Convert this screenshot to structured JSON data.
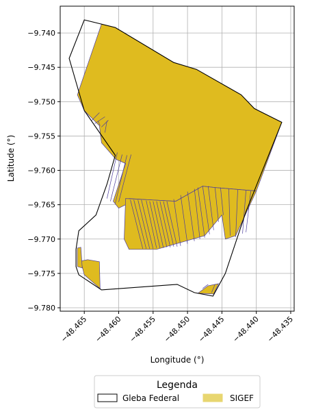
{
  "chart_data": {
    "type": "map",
    "title": "",
    "xlabel": "Longitude (°)",
    "ylabel": "Latitude (°)",
    "xlim": [
      -48.4685,
      -48.4345
    ],
    "ylim": [
      -9.7805,
      -9.7361
    ],
    "x_ticks": [
      {
        "value": -48.465,
        "label": "−48.465"
      },
      {
        "value": -48.46,
        "label": "−48.460"
      },
      {
        "value": -48.455,
        "label": "−48.455"
      },
      {
        "value": -48.45,
        "label": "−48.450"
      },
      {
        "value": -48.445,
        "label": "−48.445"
      },
      {
        "value": -48.44,
        "label": "−48.440"
      },
      {
        "value": -48.435,
        "label": "−48.435"
      }
    ],
    "y_ticks": [
      {
        "value": -9.74,
        "label": "−9.740"
      },
      {
        "value": -9.745,
        "label": "−9.745"
      },
      {
        "value": -9.75,
        "label": "−9.750"
      },
      {
        "value": -9.755,
        "label": "−9.755"
      },
      {
        "value": -9.76,
        "label": "−9.760"
      },
      {
        "value": -9.765,
        "label": "−9.765"
      },
      {
        "value": -9.77,
        "label": "−9.770"
      },
      {
        "value": -9.775,
        "label": "−9.775"
      },
      {
        "value": -9.78,
        "label": "−9.780"
      }
    ],
    "grid": true,
    "legend": {
      "title": "Legenda",
      "placement": "bottom-center",
      "entries": [
        {
          "label": "Gleba Federal",
          "fill": "#ffffff",
          "edge": "#000000"
        },
        {
          "label": "SIGEF",
          "fill": "#e8d670",
          "edge": "#e8d670"
        }
      ]
    },
    "colors": {
      "sigef_fill": "#dfbb1f",
      "sigef_edge": "#4b3c9c",
      "gleba_edge": "#000000",
      "grid": "#b0b0b0"
    },
    "layers": {
      "gleba_federal": [
        [
          [
            -48.465,
            -9.7381
          ],
          [
            -48.4605,
            -9.7392
          ],
          [
            -48.452,
            -9.7443
          ],
          [
            -48.4487,
            -9.7453
          ],
          [
            -48.4422,
            -9.749
          ],
          [
            -48.4403,
            -9.751
          ],
          [
            -48.4363,
            -9.753
          ],
          [
            -48.4415,
            -9.766
          ],
          [
            -48.4445,
            -9.775
          ],
          [
            -48.4463,
            -9.7783
          ],
          [
            -48.449,
            -9.7778
          ],
          [
            -48.4515,
            -9.7766
          ],
          [
            -48.4625,
            -9.7774
          ],
          [
            -48.4658,
            -9.7752
          ],
          [
            -48.4662,
            -9.774
          ],
          [
            -48.4662,
            -9.7715
          ],
          [
            -48.4658,
            -9.7688
          ],
          [
            -48.4633,
            -9.7665
          ],
          [
            -48.4617,
            -9.762
          ],
          [
            -48.4605,
            -9.7578
          ],
          [
            -48.465,
            -9.7513
          ],
          [
            -48.4672,
            -9.7437
          ],
          [
            -48.465,
            -9.7381
          ]
        ]
      ],
      "sigef": [
        [
          [
            -48.4625,
            -9.7387
          ],
          [
            -48.4605,
            -9.7392
          ],
          [
            -48.452,
            -9.7443
          ],
          [
            -48.4487,
            -9.7453
          ],
          [
            -48.4422,
            -9.749
          ],
          [
            -48.4403,
            -9.751
          ],
          [
            -48.4363,
            -9.753
          ],
          [
            -48.44,
            -9.763
          ],
          [
            -48.446,
            -9.7625
          ],
          [
            -48.4478,
            -9.7623
          ],
          [
            -48.4517,
            -9.7645
          ],
          [
            -48.4555,
            -9.7643
          ],
          [
            -48.4585,
            -9.7641
          ],
          [
            -48.459,
            -9.765
          ],
          [
            -48.46,
            -9.7655
          ],
          [
            -48.4608,
            -9.7645
          ],
          [
            -48.459,
            -9.759
          ],
          [
            -48.4604,
            -9.7584
          ],
          [
            -48.4625,
            -9.756
          ],
          [
            -48.4628,
            -9.7535
          ],
          [
            -48.465,
            -9.7513
          ],
          [
            -48.466,
            -9.749
          ],
          [
            -48.4625,
            -9.7387
          ]
        ],
        [
          [
            -48.44,
            -9.763
          ],
          [
            -48.443,
            -9.7695
          ],
          [
            -48.4445,
            -9.77
          ],
          [
            -48.445,
            -9.7665
          ],
          [
            -48.4475,
            -9.7695
          ],
          [
            -48.4545,
            -9.7715
          ],
          [
            -48.4585,
            -9.7715
          ],
          [
            -48.4592,
            -9.77
          ],
          [
            -48.459,
            -9.7641
          ],
          [
            -48.4517,
            -9.7645
          ],
          [
            -48.4478,
            -9.7623
          ],
          [
            -48.446,
            -9.7625
          ],
          [
            -48.44,
            -9.763
          ]
        ],
        [
          [
            -48.4655,
            -9.7732
          ],
          [
            -48.4645,
            -9.773
          ],
          [
            -48.4628,
            -9.7733
          ],
          [
            -48.4627,
            -9.7772
          ],
          [
            -48.465,
            -9.7752
          ],
          [
            -48.4655,
            -9.7732
          ]
        ],
        [
          [
            -48.466,
            -9.7713
          ],
          [
            -48.4655,
            -9.7712
          ],
          [
            -48.4653,
            -9.7742
          ],
          [
            -48.466,
            -9.774
          ],
          [
            -48.466,
            -9.7713
          ]
        ],
        [
          [
            -48.4485,
            -9.7779
          ],
          [
            -48.447,
            -9.7768
          ],
          [
            -48.4455,
            -9.7765
          ],
          [
            -48.4462,
            -9.778
          ],
          [
            -48.4485,
            -9.7779
          ]
        ]
      ],
      "sigef_parcel_lines": [
        [
          [
            -48.4628,
            -9.7516
          ],
          [
            -48.464,
            -9.7528
          ]
        ],
        [
          [
            -48.462,
            -9.7522
          ],
          [
            -48.4635,
            -9.7532
          ]
        ],
        [
          [
            -48.4615,
            -9.7527
          ],
          [
            -48.4625,
            -9.7537
          ]
        ],
        [
          [
            -48.463,
            -9.7528
          ],
          [
            -48.4627,
            -9.7535
          ]
        ],
        [
          [
            -48.4617,
            -9.7528
          ],
          [
            -48.462,
            -9.7545
          ]
        ],
        [
          [
            -48.4602,
            -9.7574
          ],
          [
            -48.4617,
            -9.7641
          ]
        ],
        [
          [
            -48.4595,
            -9.7577
          ],
          [
            -48.4612,
            -9.7645
          ]
        ],
        [
          [
            -48.4588,
            -9.7578
          ],
          [
            -48.4605,
            -9.7648
          ]
        ],
        [
          [
            -48.4582,
            -9.7577
          ],
          [
            -48.46,
            -9.7646
          ]
        ],
        [
          [
            -48.4583,
            -9.7643
          ],
          [
            -48.4565,
            -9.7714
          ]
        ],
        [
          [
            -48.4578,
            -9.7643
          ],
          [
            -48.456,
            -9.7714
          ]
        ],
        [
          [
            -48.4572,
            -9.7643
          ],
          [
            -48.4555,
            -9.7714
          ]
        ],
        [
          [
            -48.4567,
            -9.7643
          ],
          [
            -48.455,
            -9.7714
          ]
        ],
        [
          [
            -48.456,
            -9.7644
          ],
          [
            -48.4545,
            -9.7713
          ]
        ],
        [
          [
            -48.4555,
            -9.7645
          ],
          [
            -48.454,
            -9.7713
          ]
        ],
        [
          [
            -48.455,
            -9.7645
          ],
          [
            -48.4535,
            -9.7713
          ]
        ],
        [
          [
            -48.4545,
            -9.7645
          ],
          [
            -48.453,
            -9.7712
          ]
        ],
        [
          [
            -48.454,
            -9.7645
          ],
          [
            -48.4525,
            -9.7712
          ]
        ],
        [
          [
            -48.4535,
            -9.7645
          ],
          [
            -48.452,
            -9.7711
          ]
        ],
        [
          [
            -48.453,
            -9.7645
          ],
          [
            -48.4515,
            -9.7711
          ]
        ],
        [
          [
            -48.452,
            -9.7642
          ],
          [
            -48.451,
            -9.771
          ]
        ],
        [
          [
            -48.451,
            -9.7636
          ],
          [
            -48.45,
            -9.7707
          ]
        ],
        [
          [
            -48.45,
            -9.7631
          ],
          [
            -48.449,
            -9.7703
          ]
        ],
        [
          [
            -48.449,
            -9.7627
          ],
          [
            -48.4482,
            -9.77
          ]
        ],
        [
          [
            -48.4485,
            -9.7625
          ],
          [
            -48.4475,
            -9.7698
          ]
        ],
        [
          [
            -48.4478,
            -9.7623
          ],
          [
            -48.4468,
            -9.7693
          ]
        ],
        [
          [
            -48.447,
            -9.7623
          ],
          [
            -48.4462,
            -9.7687
          ]
        ],
        [
          [
            -48.446,
            -9.7625
          ],
          [
            -48.4455,
            -9.7675
          ]
        ],
        [
          [
            -48.4452,
            -9.7625
          ],
          [
            -48.4448,
            -9.7665
          ]
        ],
        [
          [
            -48.444,
            -9.7627
          ],
          [
            -48.4438,
            -9.7695
          ]
        ],
        [
          [
            -48.4427,
            -9.7628
          ],
          [
            -48.443,
            -9.7697
          ]
        ],
        [
          [
            -48.4415,
            -9.7629
          ],
          [
            -48.442,
            -9.7692
          ]
        ],
        [
          [
            -48.4408,
            -9.763
          ],
          [
            -48.4415,
            -9.769
          ]
        ],
        [
          [
            -48.4478,
            -9.7772
          ],
          [
            -48.447,
            -9.7766
          ]
        ],
        [
          [
            -48.4465,
            -9.7778
          ],
          [
            -48.446,
            -9.7766
          ]
        ]
      ]
    }
  }
}
